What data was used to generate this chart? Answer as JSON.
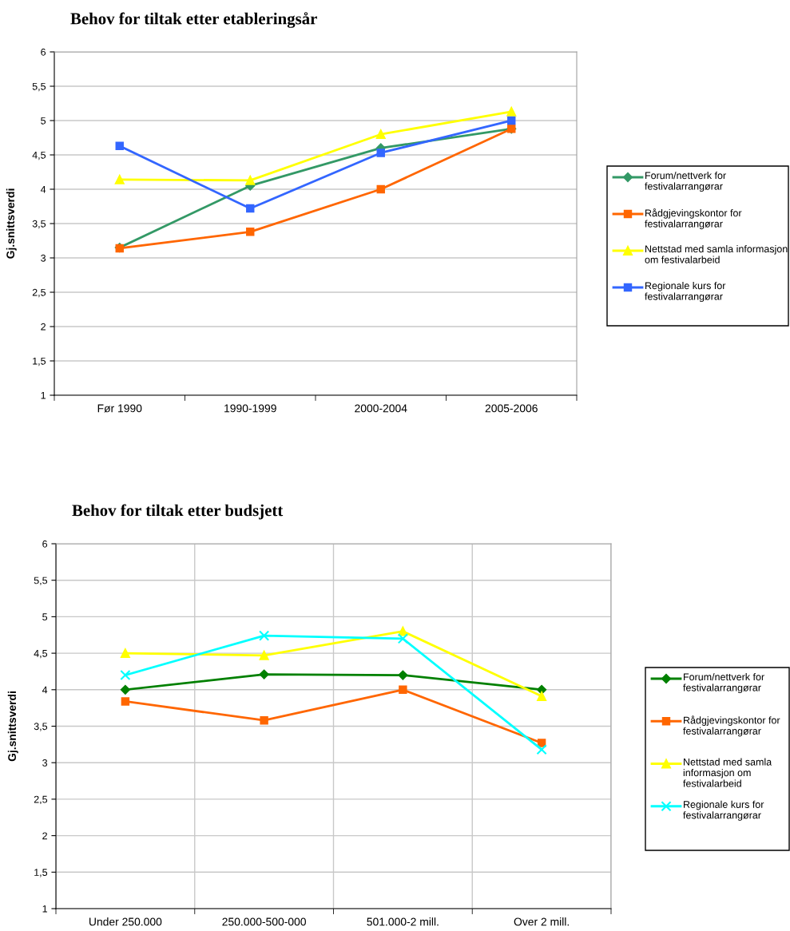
{
  "chart_data": [
    {
      "type": "line",
      "title": "Behov for tiltak etter etableringsår",
      "ylabel": "Gj.snittsverdi",
      "categories": [
        "Før 1990",
        "1990-1999",
        "2000-2004",
        "2005-2006"
      ],
      "ylim": [
        1,
        6
      ],
      "yticks": [
        1,
        {
          "value": 1.5,
          "label": "1,5"
        },
        2,
        {
          "value": 2.5,
          "label": "2,5"
        },
        3,
        {
          "value": 3.5,
          "label": "3,5"
        },
        4,
        {
          "value": 4.5,
          "label": "4,5"
        },
        5,
        {
          "value": 5.5,
          "label": "5,5"
        },
        6
      ],
      "grid": "y",
      "legend": "right",
      "line_style": "solid",
      "series": [
        {
          "name": "Forum/nettverk for festivalarrangørar",
          "color": "#339966",
          "marker": "diamond",
          "values": [
            3.15,
            4.05,
            4.6,
            4.88
          ]
        },
        {
          "name": "Rådgjevingskontor for festivalarrangørar",
          "color": "#ff6600",
          "marker": "square",
          "values": [
            3.14,
            3.38,
            4.0,
            4.88
          ]
        },
        {
          "name": "Nettstad med samla informasjon om festivalarbeid",
          "color": "#ffff00",
          "marker": "triangle",
          "values": [
            4.14,
            4.13,
            4.8,
            5.13
          ]
        },
        {
          "name": "Regionale kurs for festivalarrangørar",
          "color": "#3366ff",
          "marker": "square",
          "values": [
            4.63,
            3.72,
            4.53,
            5.0
          ]
        }
      ]
    },
    {
      "type": "line",
      "title": "Behov for tiltak etter budsjett",
      "ylabel": "Gj.snittsverdi",
      "categories": [
        "Under 250.000",
        "250.000-500-000",
        "501.000-2 mill.",
        "Over 2 mill."
      ],
      "ylim": [
        1,
        6
      ],
      "yticks": [
        1,
        {
          "value": 1.5,
          "label": "1,5"
        },
        2,
        {
          "value": 2.5,
          "label": "2,5"
        },
        3,
        {
          "value": 3.5,
          "label": "3,5"
        },
        4,
        {
          "value": 4.5,
          "label": "4,5"
        },
        5,
        {
          "value": 5.5,
          "label": "5,5"
        },
        6
      ],
      "grid": true,
      "legend": "right",
      "line_style": "solid",
      "series": [
        {
          "name": "Forum/nettverk for festivalarrangørar",
          "color": "#008000",
          "marker": "diamond",
          "values": [
            4.0,
            4.21,
            4.2,
            4.0
          ]
        },
        {
          "name": "Rådgjevingskontor for festivalarrangørar",
          "color": "#ff6600",
          "marker": "square",
          "values": [
            3.84,
            3.58,
            4.0,
            3.27
          ]
        },
        {
          "name": "Nettstad med samla informasjon om festivalarbeid",
          "color": "#ffff00",
          "marker": "triangle",
          "values": [
            4.5,
            4.47,
            4.8,
            3.91
          ]
        },
        {
          "name": "Regionale kurs for festivalarrangørar",
          "color": "#00ffff",
          "marker": "cross",
          "values": [
            4.2,
            4.74,
            4.7,
            3.18
          ]
        }
      ]
    }
  ]
}
